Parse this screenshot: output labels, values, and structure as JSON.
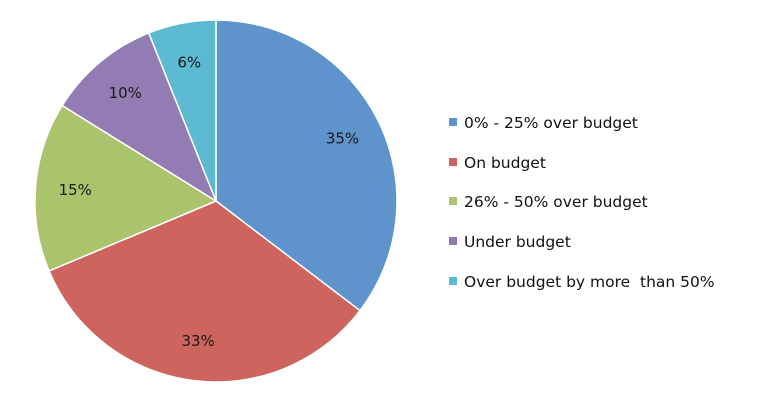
{
  "chart_data": {
    "type": "pie",
    "title": "",
    "categories": [
      "0% - 25% over budget",
      "On budget",
      "26% - 50% over budget",
      "Under budget",
      "Over budget by more  than 50%"
    ],
    "values": [
      35,
      33,
      15,
      10,
      6
    ],
    "labels": [
      "35%",
      "33%",
      "15%",
      "10%",
      "6%"
    ],
    "colors": [
      "#5F93CB",
      "#CD645E",
      "#AAC36C",
      "#937BB3",
      "#5BBAD1"
    ],
    "start": "top, clockwise",
    "legend_position": "right"
  }
}
